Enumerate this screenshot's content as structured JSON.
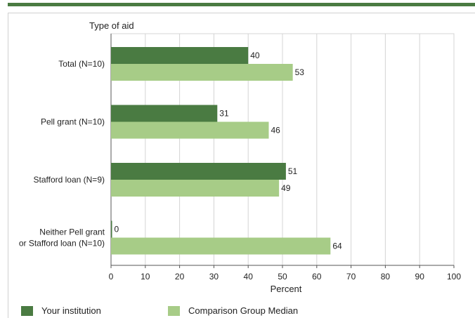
{
  "colors": {
    "institution": "#4a7b42",
    "comparison": "#a7cc87",
    "grid": "#d4d4d4",
    "axis": "#555555"
  },
  "legend": {
    "institution_label": "Your institution",
    "comparison_label": "Comparison Group Median"
  },
  "chart_data": {
    "type": "bar",
    "orientation": "horizontal",
    "title": "",
    "category_axis_label": "Type of aid",
    "value_axis_label": "Percent",
    "xlim": [
      0,
      100
    ],
    "x_ticks": [
      0,
      10,
      20,
      30,
      40,
      50,
      60,
      70,
      80,
      90,
      100
    ],
    "grid": true,
    "legend_position": "bottom",
    "categories": [
      [
        "Total  (N=10)"
      ],
      [
        "Pell grant  (N=10)"
      ],
      [
        "Stafford loan (N=9)"
      ],
      [
        "Neither Pell grant",
        "or Stafford loan (N=10)"
      ]
    ],
    "series": [
      {
        "name": "Your institution",
        "values": [
          40,
          31,
          51,
          0
        ]
      },
      {
        "name": "Comparison Group Median",
        "values": [
          53,
          46,
          49,
          64
        ]
      }
    ]
  }
}
